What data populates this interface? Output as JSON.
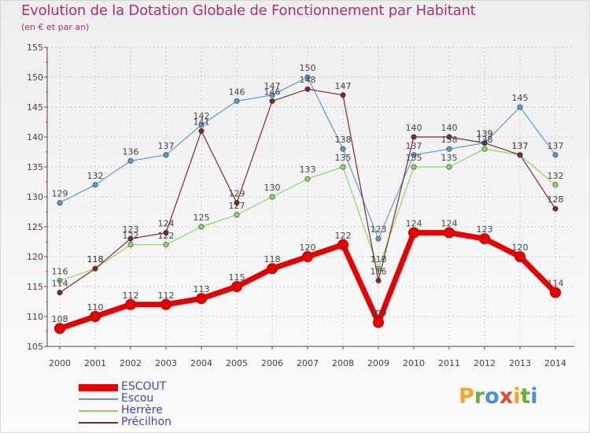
{
  "header": {
    "title": "Evolution de la Dotation Globale de Fonctionnement par Habitant",
    "subtitle": "(en € et par an)"
  },
  "brand": {
    "text": "Proxiti",
    "letters": [
      {
        "ch": "P",
        "color": "#f5a623"
      },
      {
        "ch": "r",
        "color": "#6fae3c"
      },
      {
        "ch": "o",
        "color": "#4a90d9"
      },
      {
        "ch": "x",
        "color": "#e04a2a"
      },
      {
        "ch": "i",
        "color": "#f5a623"
      },
      {
        "ch": "t",
        "color": "#6fae3c"
      },
      {
        "ch": "i",
        "color": "#4a90d9"
      }
    ]
  },
  "chart_data": {
    "type": "line",
    "title": "Evolution de la Dotation Globale de Fonctionnement par Habitant",
    "subtitle": "(en € et par an)",
    "xlabel": "",
    "ylabel": "",
    "grid": true,
    "legend": "bottom-left",
    "ylim": [
      105,
      155
    ],
    "yticks": [
      105,
      110,
      115,
      120,
      125,
      130,
      135,
      140,
      145,
      150,
      155
    ],
    "categories": [
      "2000",
      "2001",
      "2002",
      "2003",
      "2004",
      "2005",
      "2006",
      "2007",
      "2008",
      "2009",
      "2010",
      "2011",
      "2012",
      "2013",
      "2014"
    ],
    "series": [
      {
        "name": "ESCOUT",
        "color": "#e60000",
        "emphasis": true,
        "values": [
          108,
          110,
          112,
          112,
          113,
          115,
          118,
          120,
          122,
          109,
          124,
          124,
          123,
          120,
          114
        ]
      },
      {
        "name": "Escou",
        "color": "#5b9bd0",
        "emphasis": false,
        "values": [
          129,
          132,
          136,
          137,
          142,
          146,
          147,
          150,
          138,
          123,
          137,
          138,
          139,
          145,
          137
        ]
      },
      {
        "name": "Herrère",
        "color": "#8fd46a",
        "emphasis": false,
        "values": [
          116,
          118,
          122,
          122,
          125,
          127,
          130,
          133,
          135,
          118,
          135,
          135,
          138,
          137,
          132
        ]
      },
      {
        "name": "Précilhon",
        "color": "#7a2a2a",
        "emphasis": false,
        "values": [
          114,
          118,
          123,
          124,
          141,
          129,
          146,
          148,
          147,
          116,
          140,
          140,
          139,
          137,
          128
        ]
      }
    ]
  }
}
